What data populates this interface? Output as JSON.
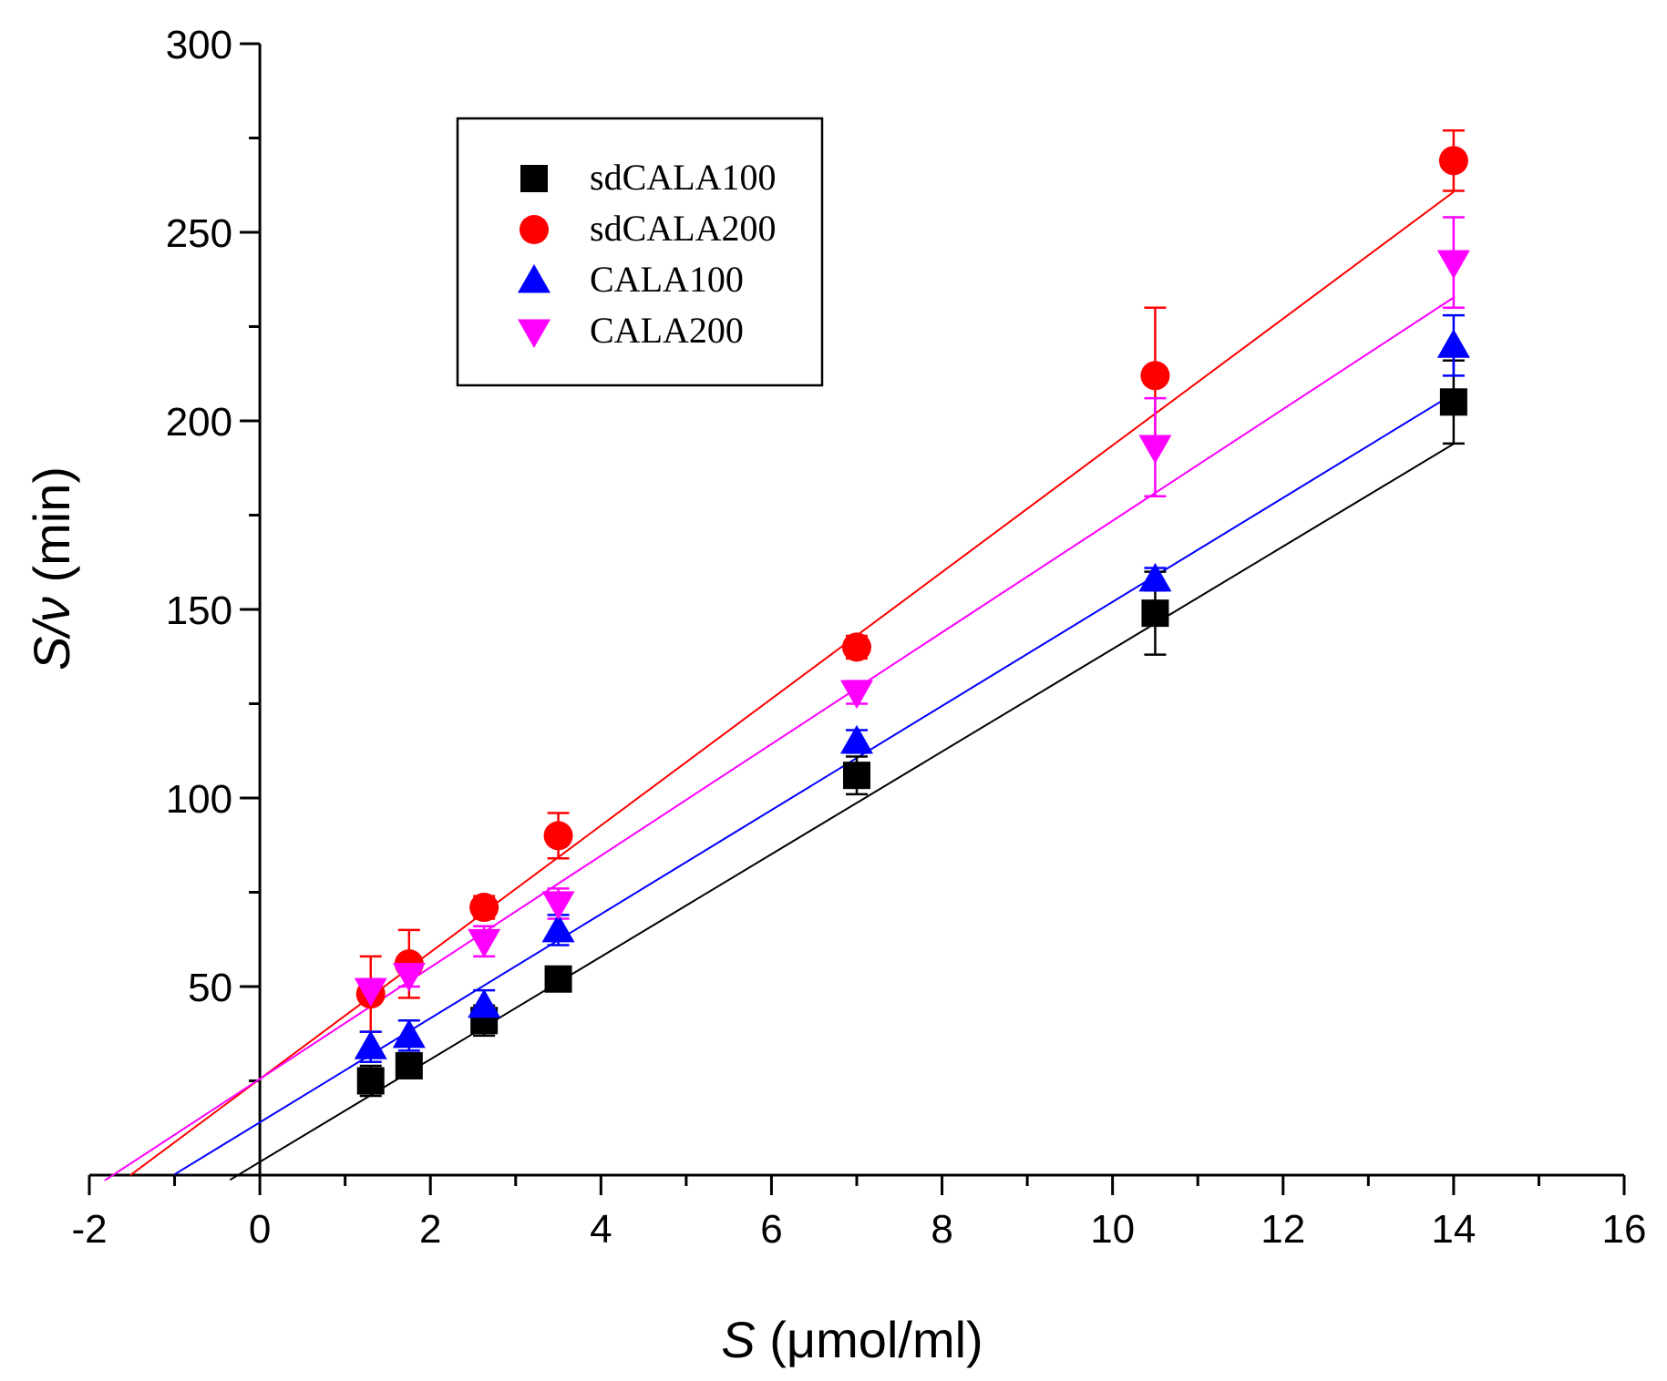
{
  "chart_data": {
    "type": "scatter",
    "title": "",
    "xlabel": {
      "italic": "S",
      "rest": " (μmol/ml)"
    },
    "ylabel": {
      "italic": "S/ν",
      "rest": " (min)"
    },
    "xlim": [
      -2,
      16
    ],
    "ylim": [
      0,
      300
    ],
    "x_ticks": [
      -2,
      0,
      2,
      4,
      6,
      8,
      10,
      12,
      14,
      16
    ],
    "y_ticks": [
      50,
      100,
      150,
      200,
      250,
      300
    ],
    "x_tick_labels": [
      "-2",
      "0",
      "2",
      "4",
      "6",
      "8",
      "10",
      "12",
      "14",
      "16"
    ],
    "y_tick_labels": [
      "50",
      "100",
      "150",
      "200",
      "250",
      "300"
    ],
    "legend_position": "top-left-inside",
    "grid": false,
    "x": [
      1.3,
      1.75,
      2.63,
      3.5,
      7.0,
      10.5,
      14.0
    ],
    "series": [
      {
        "name": "sdCALA100",
        "marker": "square",
        "color": "#000000",
        "values": [
          25,
          29,
          41,
          52,
          106,
          149,
          205
        ],
        "errors": [
          4,
          2,
          4,
          2,
          5,
          11,
          11
        ],
        "fit": {
          "intercept": 3.5,
          "slope": 13.6,
          "x_start": -0.35,
          "x_end": 14.0
        }
      },
      {
        "name": "sdCALA200",
        "marker": "circle",
        "color": "#ff0000",
        "values": [
          48,
          56,
          71,
          90,
          140,
          212,
          269
        ],
        "errors": [
          10,
          9,
          3,
          6,
          3,
          18,
          8
        ],
        "fit": {
          "intercept": 25.5,
          "slope": 16.8,
          "x_start": -1.52,
          "x_end": 14.0
        }
      },
      {
        "name": "CALA100",
        "marker": "triangle-up",
        "color": "#0000ff",
        "values": [
          34,
          37,
          45,
          65,
          115,
          158,
          220
        ],
        "errors": [
          4,
          4,
          4,
          4,
          3,
          3,
          8
        ],
        "fit": {
          "intercept": 14.0,
          "slope": 13.8,
          "x_start": -1.0,
          "x_end": 14.0
        }
      },
      {
        "name": "CALA200",
        "marker": "triangle-down",
        "color": "#ff00ff",
        "values": [
          49,
          53,
          62,
          72,
          128,
          193,
          242
        ],
        "errors": [
          3,
          3,
          4,
          4,
          3,
          13,
          12
        ],
        "fit": {
          "intercept": 25.5,
          "slope": 14.8,
          "x_start": -1.82,
          "x_end": 14.0
        }
      }
    ]
  }
}
